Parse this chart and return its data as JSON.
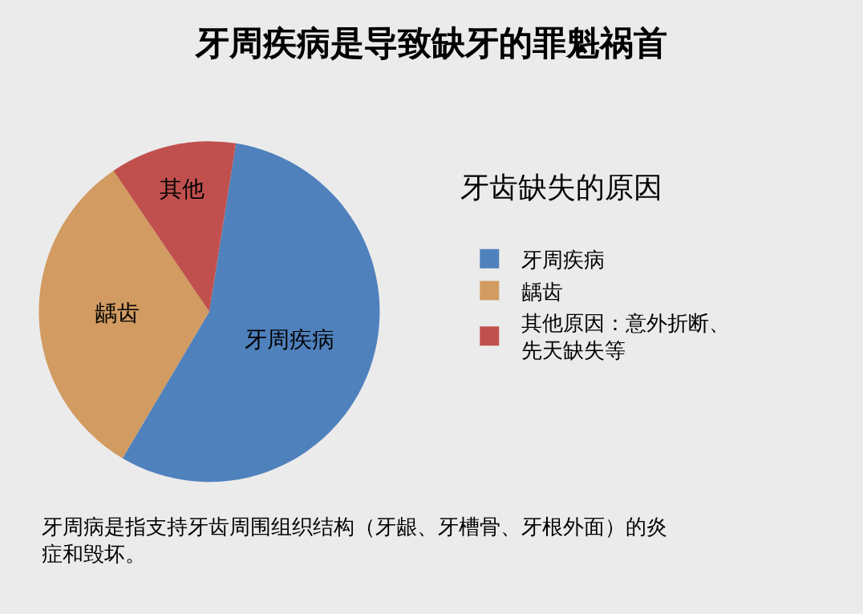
{
  "chart_data": {
    "type": "pie",
    "title": "牙周疾病是导致缺牙的罪魁祸首",
    "legend_title": "牙齿缺失的原因",
    "categories": [
      "牙周疾病",
      "龋齿",
      "其他原因：意外折断、先天缺失等"
    ],
    "values": [
      56,
      32,
      12
    ],
    "colors": [
      "#4f81bd",
      "#d19b61",
      "#c0504d"
    ],
    "value_labels": [
      "牙周疾病",
      "龋齿",
      "其他"
    ],
    "legend": "right",
    "annotations": [
      "牙周病是指支持牙齿周围组织结构（牙龈、牙槽骨、牙根外面）的炎症和毁坏。"
    ]
  }
}
